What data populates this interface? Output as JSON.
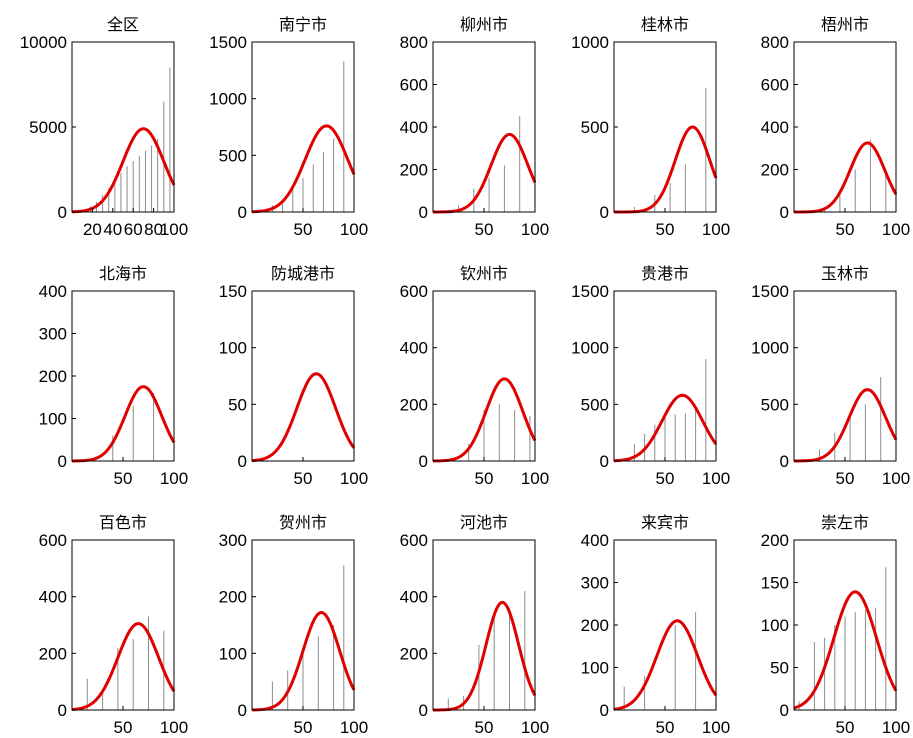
{
  "chart_data": {
    "type": "bar",
    "layout": "3x5 small multiples",
    "subplots": [
      {
        "title": "全区",
        "xlim": [
          0,
          100
        ],
        "ylim": [
          0,
          10000
        ],
        "xticks": [
          20,
          40,
          60,
          80,
          100
        ],
        "xtick_labels": [
          "20",
          "40",
          "60",
          "80",
          "100"
        ],
        "yticks": [
          0,
          5000,
          10000
        ],
        "ytick_labels": [
          "0",
          "5000",
          "10000"
        ],
        "bars": {
          "x": [
            5,
            12,
            18,
            24,
            30,
            36,
            42,
            48,
            54,
            60,
            66,
            72,
            78,
            84,
            90,
            96
          ],
          "y": [
            50,
            150,
            350,
            600,
            1000,
            1400,
            1900,
            2300,
            2700,
            3000,
            3300,
            3600,
            3900,
            4300,
            6500,
            8500
          ]
        },
        "fit": {
          "peak_x": 70,
          "peak_y": 4900,
          "sd": 20
        }
      },
      {
        "title": "南宁市",
        "xlim": [
          0,
          100
        ],
        "ylim": [
          0,
          1500
        ],
        "xticks": [
          50,
          100
        ],
        "xtick_labels": [
          "50",
          "100"
        ],
        "yticks": [
          0,
          500,
          1000,
          1500
        ],
        "ytick_labels": [
          "0",
          "500",
          "1000",
          "1500"
        ],
        "bars": {
          "x": [
            10,
            20,
            30,
            40,
            50,
            60,
            70,
            80,
            90
          ],
          "y": [
            20,
            60,
            100,
            200,
            300,
            420,
            530,
            650,
            1330
          ]
        },
        "fit": {
          "peak_x": 73,
          "peak_y": 760,
          "sd": 21
        }
      },
      {
        "title": "柳州市",
        "xlim": [
          0,
          100
        ],
        "ylim": [
          0,
          800
        ],
        "xticks": [
          50,
          100
        ],
        "xtick_labels": [
          "50",
          "100"
        ],
        "yticks": [
          0,
          200,
          400,
          600,
          800
        ],
        "ytick_labels": [
          "0",
          "200",
          "400",
          "600",
          "800"
        ],
        "bars": {
          "x": [
            25,
            40,
            55,
            70,
            85
          ],
          "y": [
            30,
            110,
            160,
            220,
            450
          ]
        },
        "fit": {
          "peak_x": 75,
          "peak_y": 365,
          "sd": 18
        }
      },
      {
        "title": "桂林市",
        "xlim": [
          0,
          100
        ],
        "ylim": [
          0,
          1000
        ],
        "xticks": [
          50,
          100
        ],
        "xtick_labels": [
          "50",
          "100"
        ],
        "yticks": [
          0,
          500,
          1000
        ],
        "ytick_labels": [
          "0",
          "500",
          "1000"
        ],
        "bars": {
          "x": [
            20,
            40,
            55,
            70,
            90
          ],
          "y": [
            30,
            100,
            170,
            280,
            730
          ]
        },
        "fit": {
          "peak_x": 77,
          "peak_y": 500,
          "sd": 17
        }
      },
      {
        "title": "梧州市",
        "xlim": [
          0,
          100
        ],
        "ylim": [
          0,
          800
        ],
        "xticks": [
          50,
          100
        ],
        "xtick_labels": [
          "50",
          "100"
        ],
        "yticks": [
          0,
          200,
          400,
          600,
          800
        ],
        "ytick_labels": [
          "0",
          "200",
          "400",
          "600",
          "800"
        ],
        "bars": {
          "x": [
            30,
            45,
            60,
            75,
            90
          ],
          "y": [
            20,
            80,
            200,
            340,
            180
          ]
        },
        "fit": {
          "peak_x": 72,
          "peak_y": 325,
          "sd": 17
        }
      },
      {
        "title": "北海市",
        "xlim": [
          0,
          100
        ],
        "ylim": [
          0,
          400
        ],
        "xticks": [
          50,
          100
        ],
        "xtick_labels": [
          "50",
          "100"
        ],
        "yticks": [
          0,
          100,
          200,
          300,
          400
        ],
        "ytick_labels": [
          "0",
          "100",
          "200",
          "300",
          "400"
        ],
        "bars": {
          "x": [
            40,
            60,
            80
          ],
          "y": [
            60,
            130,
            160
          ]
        },
        "fit": {
          "peak_x": 70,
          "peak_y": 175,
          "sd": 18
        }
      },
      {
        "title": "防城港市",
        "xlim": [
          0,
          100
        ],
        "ylim": [
          0,
          150
        ],
        "xticks": [
          50,
          100
        ],
        "xtick_labels": [
          "50",
          "100"
        ],
        "yticks": [
          0,
          50,
          100,
          150
        ],
        "ytick_labels": [
          "0",
          "50",
          "100",
          "150"
        ],
        "bars": {
          "x": [],
          "y": []
        },
        "fit": {
          "peak_x": 63,
          "peak_y": 77,
          "sd": 19
        }
      },
      {
        "title": "钦州市",
        "xlim": [
          0,
          100
        ],
        "ylim": [
          0,
          600
        ],
        "xticks": [
          50,
          100
        ],
        "xtick_labels": [
          "50",
          "100"
        ],
        "yticks": [
          0,
          200,
          400,
          600
        ],
        "ytick_labels": [
          "0",
          "200",
          "400",
          "600"
        ],
        "bars": {
          "x": [
            35,
            50,
            65,
            80,
            95
          ],
          "y": [
            60,
            180,
            200,
            180,
            160
          ]
        },
        "fit": {
          "peak_x": 70,
          "peak_y": 290,
          "sd": 18
        }
      },
      {
        "title": "贵港市",
        "xlim": [
          0,
          100
        ],
        "ylim": [
          0,
          1500
        ],
        "xticks": [
          50,
          100
        ],
        "xtick_labels": [
          "50",
          "100"
        ],
        "yticks": [
          0,
          500,
          1000,
          1500
        ],
        "ytick_labels": [
          "0",
          "500",
          "1000",
          "1500"
        ],
        "bars": {
          "x": [
            20,
            30,
            40,
            50,
            60,
            70,
            80,
            90
          ],
          "y": [
            150,
            240,
            320,
            380,
            410,
            420,
            450,
            900
          ]
        },
        "fit": {
          "peak_x": 67,
          "peak_y": 580,
          "sd": 20
        }
      },
      {
        "title": "玉林市",
        "xlim": [
          0,
          100
        ],
        "ylim": [
          0,
          1500
        ],
        "xticks": [
          50,
          100
        ],
        "xtick_labels": [
          "50",
          "100"
        ],
        "yticks": [
          0,
          500,
          1000,
          1500
        ],
        "ytick_labels": [
          "0",
          "500",
          "1000",
          "1500"
        ],
        "bars": {
          "x": [
            25,
            40,
            55,
            70,
            85
          ],
          "y": [
            100,
            250,
            420,
            500,
            740
          ]
        },
        "fit": {
          "peak_x": 72,
          "peak_y": 630,
          "sd": 18
        }
      },
      {
        "title": "百色市",
        "xlim": [
          0,
          100
        ],
        "ylim": [
          0,
          600
        ],
        "xticks": [
          50,
          100
        ],
        "xtick_labels": [
          "50",
          "100"
        ],
        "yticks": [
          0,
          200,
          400,
          600
        ],
        "ytick_labels": [
          "0",
          "200",
          "400",
          "600"
        ],
        "bars": {
          "x": [
            15,
            30,
            45,
            60,
            75,
            90
          ],
          "y": [
            110,
            70,
            220,
            250,
            330,
            280
          ]
        },
        "fit": {
          "peak_x": 65,
          "peak_y": 305,
          "sd": 20
        }
      },
      {
        "title": "贺州市",
        "xlim": [
          0,
          100
        ],
        "ylim": [
          0,
          300
        ],
        "xticks": [
          50,
          100
        ],
        "xtick_labels": [
          "50",
          "100"
        ],
        "yticks": [
          0,
          100,
          200,
          300
        ],
        "ytick_labels": [
          "0",
          "100",
          "200",
          "300"
        ],
        "bars": {
          "x": [
            20,
            35,
            50,
            65,
            80,
            90
          ],
          "y": [
            50,
            70,
            110,
            130,
            150,
            255
          ]
        },
        "fit": {
          "peak_x": 68,
          "peak_y": 172,
          "sd": 18
        }
      },
      {
        "title": "河池市",
        "xlim": [
          0,
          100
        ],
        "ylim": [
          0,
          600
        ],
        "xticks": [
          50,
          100
        ],
        "xtick_labels": [
          "50",
          "100"
        ],
        "yticks": [
          0,
          200,
          400,
          600
        ],
        "ytick_labels": [
          "0",
          "200",
          "400",
          "600"
        ],
        "bars": {
          "x": [
            15,
            30,
            45,
            60,
            75,
            90
          ],
          "y": [
            40,
            50,
            230,
            330,
            360,
            420
          ]
        },
        "fit": {
          "peak_x": 68,
          "peak_y": 380,
          "sd": 16
        }
      },
      {
        "title": "来宾市",
        "xlim": [
          0,
          100
        ],
        "ylim": [
          0,
          400
        ],
        "xticks": [
          50,
          100
        ],
        "xtick_labels": [
          "50",
          "100"
        ],
        "yticks": [
          0,
          100,
          200,
          300,
          400
        ],
        "ytick_labels": [
          "0",
          "100",
          "200",
          "300",
          "400"
        ],
        "bars": {
          "x": [
            10,
            30,
            60,
            80
          ],
          "y": [
            55,
            80,
            200,
            230
          ]
        },
        "fit": {
          "peak_x": 62,
          "peak_y": 210,
          "sd": 20
        }
      },
      {
        "title": "崇左市",
        "xlim": [
          0,
          100
        ],
        "ylim": [
          0,
          200
        ],
        "xticks": [
          50,
          100
        ],
        "xtick_labels": [
          "50",
          "100"
        ],
        "yticks": [
          0,
          50,
          100,
          150,
          200
        ],
        "ytick_labels": [
          "0",
          "50",
          "100",
          "150",
          "200"
        ],
        "bars": {
          "x": [
            5,
            20,
            30,
            40,
            50,
            60,
            70,
            80,
            90
          ],
          "y": [
            10,
            80,
            85,
            100,
            110,
            115,
            118,
            120,
            168
          ]
        },
        "fit": {
          "peak_x": 60,
          "peak_y": 139,
          "sd": 21
        }
      }
    ]
  },
  "colors": {
    "fit_line": "#e00000",
    "bars": "#8c8c8c",
    "axes": "#000000"
  }
}
